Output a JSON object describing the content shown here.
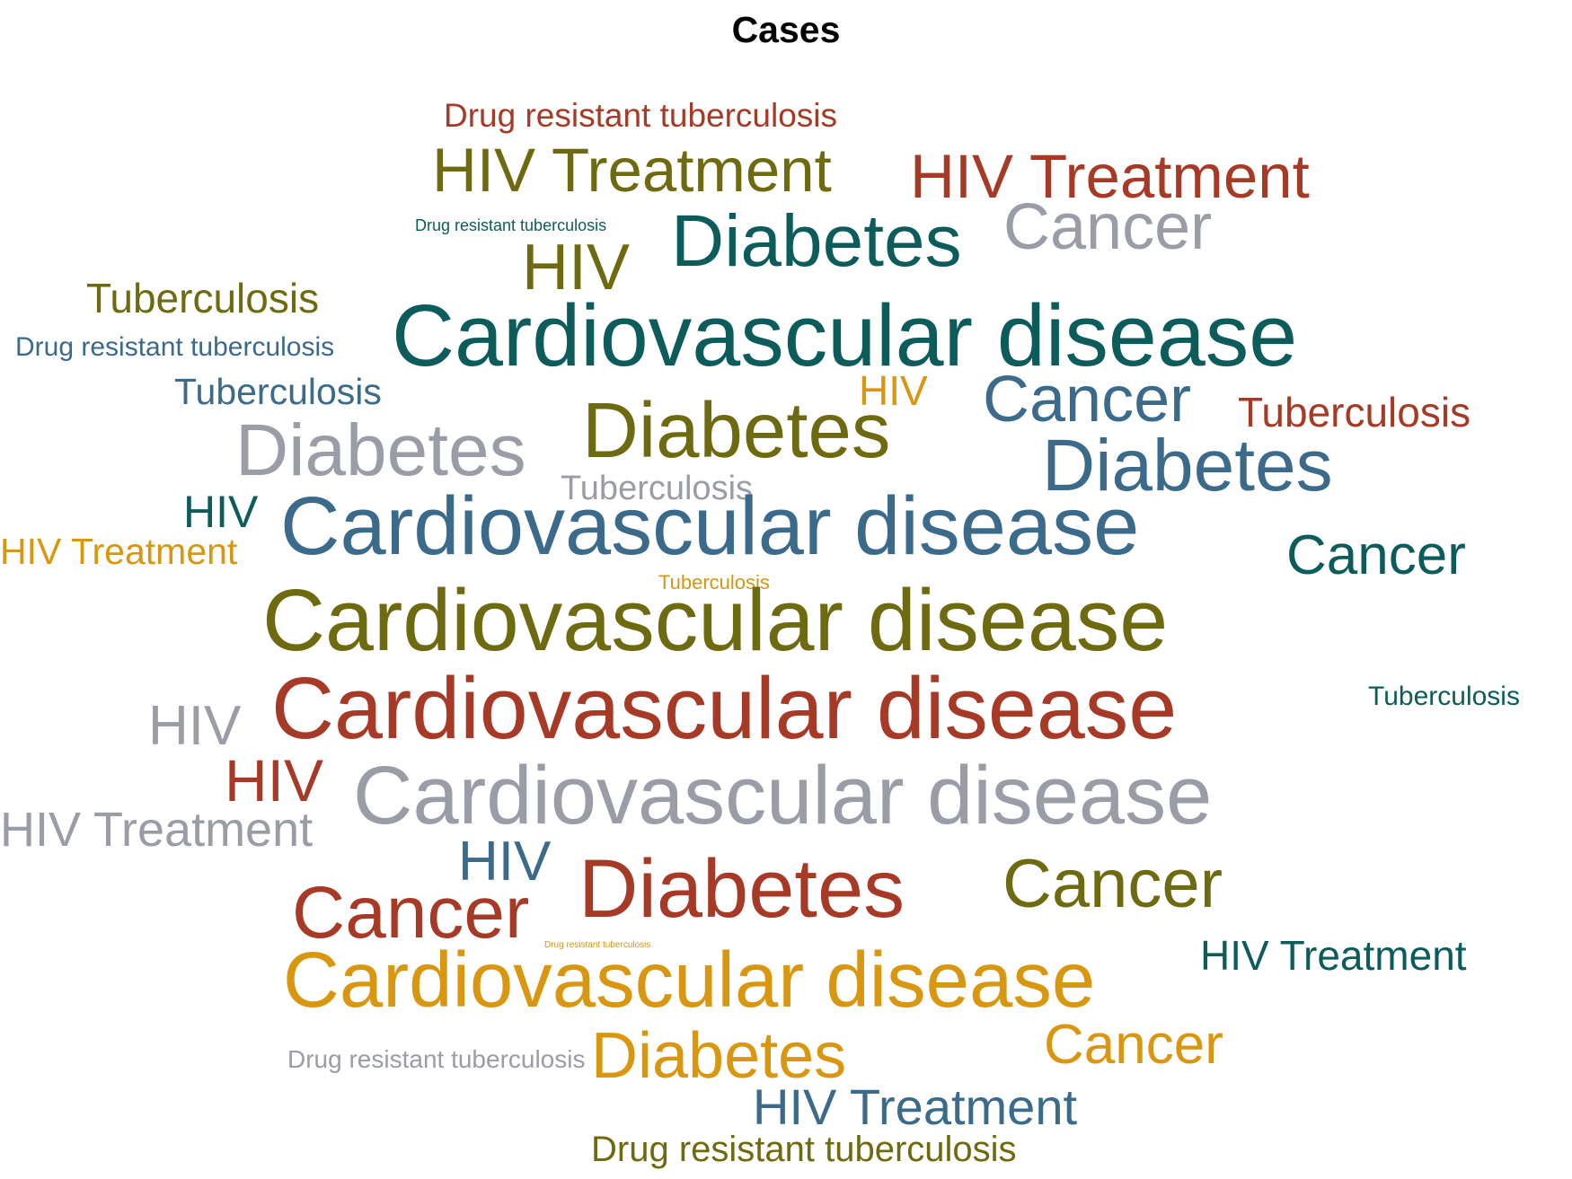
{
  "chart_data": {
    "type": "wordcloud",
    "title": "Cases",
    "colors": {
      "teal": "#0d5c5c",
      "olive": "#6e6a10",
      "rust": "#a63a26",
      "gray": "#9a9ca6",
      "steel": "#3b6a8a",
      "gold": "#d9960f"
    },
    "words": [
      {
        "text": "Drug resistant tuberculosis",
        "color": "#a63a26"
      },
      {
        "text": "HIV Treatment",
        "color": "#6e6a10"
      },
      {
        "text": "HIV Treatment",
        "color": "#a63a26"
      },
      {
        "text": "Drug resistant tuberculosis",
        "color": "#0d5c5c"
      },
      {
        "text": "Diabetes",
        "color": "#0d5c5c"
      },
      {
        "text": "Cancer",
        "color": "#9a9ca6"
      },
      {
        "text": "HIV",
        "color": "#6e6a10"
      },
      {
        "text": "Tuberculosis",
        "color": "#6e6a10"
      },
      {
        "text": "Drug resistant tuberculosis",
        "color": "#3b6a8a"
      },
      {
        "text": "Cardiovascular disease",
        "color": "#0d5c5c"
      },
      {
        "text": "Tuberculosis",
        "color": "#3b6a8a"
      },
      {
        "text": "HIV",
        "color": "#d9960f"
      },
      {
        "text": "Cancer",
        "color": "#3b6a8a"
      },
      {
        "text": "Tuberculosis",
        "color": "#a63a26"
      },
      {
        "text": "Diabetes",
        "color": "#6e6a10"
      },
      {
        "text": "Diabetes",
        "color": "#9a9ca6"
      },
      {
        "text": "Diabetes",
        "color": "#3b6a8a"
      },
      {
        "text": "Tuberculosis",
        "color": "#9a9ca6"
      },
      {
        "text": "HIV",
        "color": "#0d5c5c"
      },
      {
        "text": "Cardiovascular disease",
        "color": "#3b6a8a"
      },
      {
        "text": "HIV Treatment",
        "color": "#d9960f"
      },
      {
        "text": "Cancer",
        "color": "#0d5c5c"
      },
      {
        "text": "Tuberculosis",
        "color": "#d9960f"
      },
      {
        "text": "Cardiovascular disease",
        "color": "#6e6a10"
      },
      {
        "text": "Tuberculosis",
        "color": "#0d5c5c"
      },
      {
        "text": "HIV",
        "color": "#9a9ca6"
      },
      {
        "text": "Cardiovascular disease",
        "color": "#a63a26"
      },
      {
        "text": "HIV",
        "color": "#a63a26"
      },
      {
        "text": "Cardiovascular disease",
        "color": "#9a9ca6"
      },
      {
        "text": "HIV Treatment",
        "color": "#9a9ca6"
      },
      {
        "text": "HIV",
        "color": "#3b6a8a"
      },
      {
        "text": "Diabetes",
        "color": "#a63a26"
      },
      {
        "text": "Cancer",
        "color": "#6e6a10"
      },
      {
        "text": "Cancer",
        "color": "#a63a26"
      },
      {
        "text": "Drug resistant tuberculosis",
        "color": "#d9960f"
      },
      {
        "text": "HIV Treatment",
        "color": "#0d5c5c"
      },
      {
        "text": "Cardiovascular disease",
        "color": "#d9960f"
      },
      {
        "text": "Cancer",
        "color": "#d9960f"
      },
      {
        "text": "Drug resistant tuberculosis",
        "color": "#9a9ca6"
      },
      {
        "text": "Diabetes",
        "color": "#d9960f"
      },
      {
        "text": "HIV Treatment",
        "color": "#3b6a8a"
      },
      {
        "text": "Drug resistant tuberculosis",
        "color": "#6e6a10"
      }
    ]
  }
}
